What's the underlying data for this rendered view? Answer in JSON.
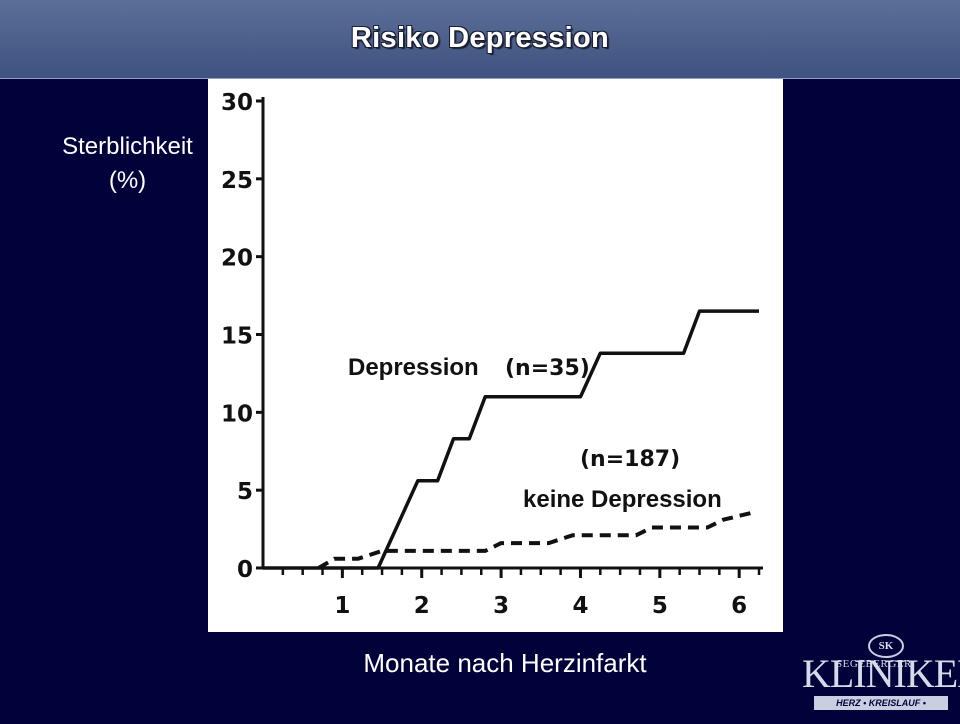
{
  "header": {
    "title": "Risiko Depression"
  },
  "axes": {
    "ylabel_line1": "Sterblichkeit",
    "ylabel_line2": "(%)",
    "xlabel": "Monate nach Herzinfarkt"
  },
  "logo": {
    "badge": "SK",
    "top": "SEGEBERGER",
    "main": "KLINIKEN",
    "sub": "HERZ • KREISLAUF • ZENTRUM"
  },
  "colors": {
    "background": "#02023a",
    "title_bar": "#4a5d8a",
    "plot_line": "#111111"
  },
  "chart_data": {
    "type": "line",
    "title": "",
    "xlabel": "Monate nach Herzinfarkt",
    "ylabel": "Sterblichkeit (%)",
    "xlim": [
      0,
      6.3
    ],
    "ylim": [
      0,
      30
    ],
    "xticks": [
      1,
      2,
      3,
      4,
      5,
      6
    ],
    "yticks": [
      0,
      5,
      10,
      15,
      20,
      25,
      30
    ],
    "grid": false,
    "series": [
      {
        "name": "Depression",
        "label_n": "(n=35)",
        "style": "solid",
        "x": [
          0,
          1.45,
          1.45,
          1.95,
          2.2,
          2.4,
          2.6,
          2.8,
          2.95,
          3.1,
          3.4,
          4.0,
          4.25,
          4.45,
          5.3,
          5.5,
          6.25
        ],
        "y": [
          0,
          0,
          0,
          5.6,
          5.6,
          8.3,
          8.3,
          11.0,
          11.0,
          11.0,
          11.0,
          11.0,
          13.8,
          13.8,
          13.8,
          16.5,
          16.5
        ]
      },
      {
        "name": "keine Depression",
        "label_n": "(n=187)",
        "style": "dashed",
        "x": [
          0.7,
          0.9,
          1.2,
          1.5,
          2.0,
          2.4,
          2.8,
          3.0,
          3.6,
          3.9,
          4.7,
          4.9,
          5.6,
          5.8,
          6.2
        ],
        "y": [
          0,
          0.6,
          0.6,
          1.1,
          1.1,
          1.1,
          1.1,
          1.6,
          1.6,
          2.1,
          2.1,
          2.6,
          2.6,
          3.1,
          3.6
        ]
      }
    ],
    "annotations": [
      {
        "text": "Depression",
        "series": 0
      },
      {
        "text": "(n=35)",
        "series": 0
      },
      {
        "text": "(n=187)",
        "series": 1
      },
      {
        "text": "keine Depression",
        "series": 1
      }
    ]
  }
}
